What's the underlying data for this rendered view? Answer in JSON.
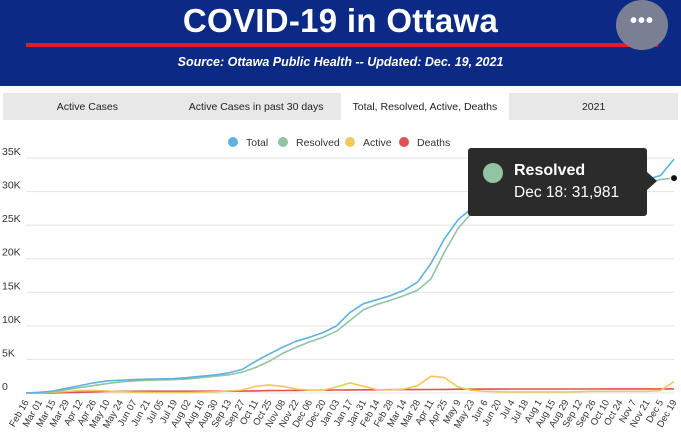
{
  "header": {
    "title": "COVID-19 in Ottawa",
    "subtitle": "Source:  Ottawa Public Health -- Updated:  Dec. 19, 2021",
    "menu_glyph": "•••",
    "menu_icon": "more-horizontal-icon"
  },
  "tabs": [
    {
      "label": "Active Cases",
      "active": false
    },
    {
      "label": "Active Cases in past 30 days",
      "active": false
    },
    {
      "label": "Total, Resolved, Active, Deaths",
      "active": true
    },
    {
      "label": "2021",
      "active": false
    }
  ],
  "tooltip": {
    "series": "Resolved",
    "value": "Dec 18: 31,981",
    "color": "#90c4a2"
  },
  "chart_data": {
    "type": "line",
    "legend_position": "top-center",
    "grid": true,
    "ylim": [
      0,
      35000
    ],
    "yticks": [
      0,
      5000,
      10000,
      15000,
      20000,
      25000,
      30000,
      35000
    ],
    "ytick_labels": [
      "0",
      "5K",
      "10K",
      "15K",
      "20K",
      "25K",
      "30K",
      "35K"
    ],
    "x_labels": [
      "Feb 16",
      "Mar 01",
      "Mar 15",
      "Mar 29",
      "Apr 12",
      "Apr 26",
      "May 10",
      "May 24",
      "Jun 07",
      "Jun 21",
      "Jul 05",
      "Jul 19",
      "Aug 02",
      "Aug 16",
      "Aug 30",
      "Sep 13",
      "Sep 27",
      "Oct 11",
      "Oct 25",
      "Nov 08",
      "Nov 22",
      "Dec 06",
      "Dec 20",
      "Jan 03",
      "Jan 17",
      "Jan 31",
      "Feb 14",
      "Feb 28",
      "Mar 14",
      "Mar 28",
      "Apr 11",
      "Apr 25",
      "May 9",
      "May 23",
      "Jun 6",
      "Jun 20",
      "Jul 4",
      "Jul 18",
      "Aug 1",
      "Aug 15",
      "Aug 29",
      "Sep 12",
      "Sep 26",
      "Oct 10",
      "Oct 24",
      "Nov 7",
      "Nov 21",
      "Dec 5",
      "Dec 19"
    ],
    "series": [
      {
        "name": "Total",
        "color": "#5fb1e0",
        "values": [
          0,
          100,
          300,
          700,
          1100,
          1500,
          1800,
          1900,
          2000,
          2050,
          2100,
          2150,
          2300,
          2500,
          2700,
          3000,
          3500,
          4700,
          5800,
          6800,
          7700,
          8300,
          9000,
          10000,
          12000,
          13300,
          13900,
          14500,
          15300,
          16500,
          19300,
          23000,
          25800,
          27500,
          28500,
          29100,
          29400,
          29600,
          29700,
          29800,
          29900,
          30100,
          30300,
          30600,
          30900,
          31300,
          31800,
          32400,
          34800
        ]
      },
      {
        "name": "Resolved",
        "color": "#90c4a2",
        "values": [
          0,
          50,
          200,
          500,
          800,
          1100,
          1400,
          1650,
          1800,
          1900,
          1950,
          2000,
          2100,
          2300,
          2500,
          2700,
          3100,
          3800,
          4700,
          5900,
          6800,
          7600,
          8300,
          9200,
          10800,
          12400,
          13200,
          13800,
          14500,
          15300,
          17000,
          21000,
          24500,
          26800,
          27900,
          28700,
          29100,
          29300,
          29400,
          29500,
          29650,
          29800,
          30000,
          30200,
          30500,
          30900,
          31300,
          31800,
          32000
        ]
      },
      {
        "name": "Active",
        "color": "#f2c75c",
        "values": [
          0,
          60,
          120,
          220,
          350,
          380,
          300,
          200,
          120,
          90,
          70,
          70,
          80,
          120,
          180,
          300,
          450,
          1000,
          1200,
          1000,
          600,
          400,
          400,
          900,
          1500,
          1000,
          500,
          450,
          600,
          1100,
          2500,
          2300,
          900,
          400,
          250,
          200,
          150,
          150,
          150,
          150,
          150,
          200,
          250,
          250,
          250,
          250,
          250,
          350,
          1700
        ]
      },
      {
        "name": "Deaths",
        "color": "#e05252",
        "values": [
          0,
          5,
          20,
          60,
          110,
          170,
          220,
          250,
          260,
          265,
          265,
          265,
          266,
          268,
          270,
          275,
          290,
          320,
          350,
          370,
          390,
          410,
          420,
          440,
          460,
          470,
          480,
          490,
          500,
          510,
          520,
          540,
          560,
          570,
          580,
          585,
          590,
          592,
          594,
          596,
          598,
          600,
          602,
          604,
          606,
          608,
          610,
          612,
          614
        ]
      }
    ]
  }
}
